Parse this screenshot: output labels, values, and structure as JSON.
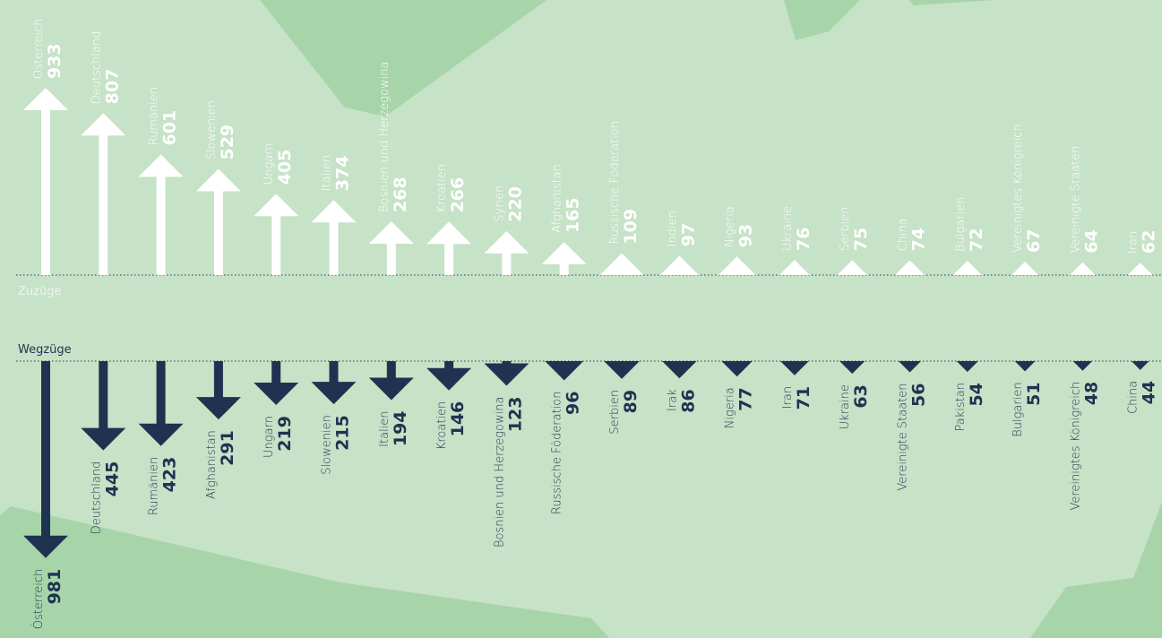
{
  "chart_data": [
    {
      "type": "arrow",
      "label": "Zuzüge",
      "direction": "up",
      "color": "#ffffff",
      "categories": [
        "Österreich",
        "Deutschland",
        "Rumänien",
        "Slowenien",
        "Ungarn",
        "Italien",
        "Bosnien und Herzegowina",
        "Kroatien",
        "Syrien",
        "Afghanistan",
        "Russische Föderation",
        "Indien",
        "Nigeria",
        "Ukraine",
        "Serbien",
        "China",
        "Bulgarien",
        "Vereinigtes Königreich",
        "Vereinigte Staaten",
        "Iran"
      ],
      "values": [
        933,
        807,
        601,
        529,
        405,
        374,
        268,
        266,
        220,
        165,
        109,
        97,
        93,
        76,
        75,
        74,
        72,
        67,
        64,
        62
      ]
    },
    {
      "type": "arrow",
      "label": "Wegzüge",
      "direction": "down",
      "color": "#1f3350",
      "categories": [
        "Österreich",
        "Deutschland",
        "Rumänien",
        "Afghanistan",
        "Ungarn",
        "Slowenien",
        "Italien",
        "Kroatien",
        "Bosnien und Herzegowina",
        "Russische Föderation",
        "Serbien",
        "Irak",
        "Nigeria",
        "Iran",
        "Ukraine",
        "Vereinigte Staaten",
        "Pakistan",
        "Bulgarien",
        "Vereinigtes Königreich",
        "China"
      ],
      "values": [
        981,
        445,
        423,
        291,
        219,
        215,
        194,
        146,
        123,
        96,
        89,
        86,
        77,
        71,
        63,
        56,
        54,
        51,
        48,
        44
      ]
    }
  ]
}
